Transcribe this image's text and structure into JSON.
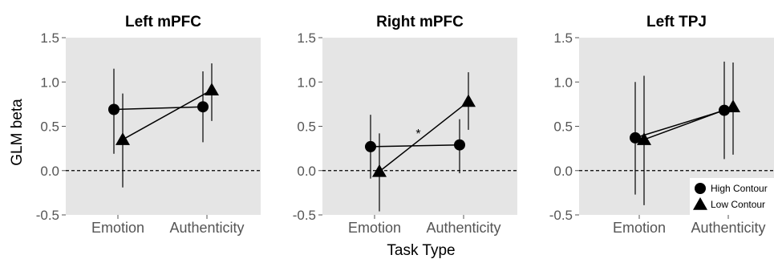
{
  "chart_data": [
    {
      "type": "line",
      "title": "Left mPFC",
      "categories": [
        "Emotion",
        "Authenticity"
      ],
      "ylim": [
        -0.5,
        1.5
      ],
      "yticks": [
        "-0.5",
        "0.0",
        "0.5",
        "1.0",
        "1.5"
      ],
      "series": [
        {
          "name": "High Contour",
          "values": [
            0.69,
            0.72
          ],
          "ci_low": [
            0.19,
            0.32
          ],
          "ci_high": [
            1.15,
            1.12
          ]
        },
        {
          "name": "Low Contour",
          "values": [
            0.35,
            0.91
          ],
          "ci_low": [
            -0.19,
            0.56
          ],
          "ci_high": [
            0.87,
            1.21
          ]
        }
      ],
      "reference_line": 0.0,
      "annotation": ""
    },
    {
      "type": "line",
      "title": "Right mPFC",
      "categories": [
        "Emotion",
        "Authenticity"
      ],
      "ylim": [
        -0.5,
        1.5
      ],
      "yticks": [
        "-0.5",
        "0.0",
        "0.5",
        "1.0",
        "1.5"
      ],
      "series": [
        {
          "name": "High Contour",
          "values": [
            0.27,
            0.29
          ],
          "ci_low": [
            -0.09,
            -0.03
          ],
          "ci_high": [
            0.63,
            0.58
          ]
        },
        {
          "name": "Low Contour",
          "values": [
            -0.01,
            0.78
          ],
          "ci_low": [
            -0.46,
            0.46
          ],
          "ci_high": [
            0.42,
            1.11
          ]
        }
      ],
      "reference_line": 0.0,
      "annotation": "*"
    },
    {
      "type": "line",
      "title": "Left TPJ",
      "categories": [
        "Emotion",
        "Authenticity"
      ],
      "ylim": [
        -0.5,
        1.5
      ],
      "yticks": [
        "-0.5",
        "0.0",
        "0.5",
        "1.0",
        "1.5"
      ],
      "series": [
        {
          "name": "High Contour",
          "values": [
            0.37,
            0.68
          ],
          "ci_low": [
            -0.27,
            0.13
          ],
          "ci_high": [
            1.0,
            1.23
          ]
        },
        {
          "name": "Low Contour",
          "values": [
            0.35,
            0.72
          ],
          "ci_low": [
            -0.39,
            0.18
          ],
          "ci_high": [
            1.07,
            1.22
          ]
        }
      ],
      "reference_line": 0.0,
      "annotation": ""
    }
  ],
  "ylabel": "GLM beta",
  "xlabel": "Task Type",
  "legend": {
    "placement": "bottom-right",
    "entries": [
      "High Contour",
      "Low Contour"
    ]
  },
  "colors": {
    "panel_bg": "#e5e5e5",
    "marker": "#000000",
    "axis_text": "#555555"
  }
}
